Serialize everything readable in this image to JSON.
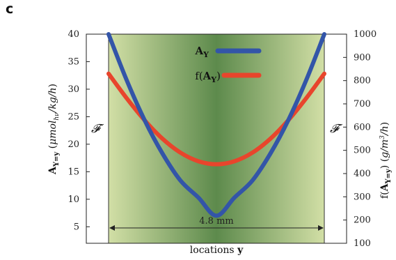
{
  "panel_label": "c",
  "chart_data": {
    "type": "line",
    "xlabel": "locations y",
    "ylabel_left": "A Y=y (μmol_hv/kg/h)",
    "ylabel_right": "f(A Y=y) (g/m³/h)",
    "ylim_left": [
      2,
      40
    ],
    "ylim_right": [
      100,
      1000
    ],
    "yticks_left": [
      5,
      10,
      15,
      20,
      25,
      30,
      35,
      40
    ],
    "yticks_right": [
      100,
      200,
      300,
      400,
      500,
      600,
      700,
      800,
      900,
      1000
    ],
    "x": [
      -2.4,
      -2.0,
      -1.6,
      -1.2,
      -0.8,
      -0.4,
      0.0,
      0.4,
      0.8,
      1.2,
      1.6,
      2.0,
      2.4
    ],
    "series": [
      {
        "name": "A Y",
        "axis": "left",
        "color": "#3355a8",
        "values": [
          40.0,
          31.7,
          24.4,
          18.3,
          13.4,
          10.3,
          7.0,
          10.3,
          13.4,
          18.3,
          24.4,
          31.7,
          40.0
        ]
      },
      {
        "name": "f(A Y)",
        "axis": "right",
        "color": "#e8452c",
        "values": [
          830,
          725,
          630,
          550,
          490,
          453,
          440,
          453,
          490,
          550,
          630,
          725,
          830
        ]
      }
    ],
    "annotations": {
      "boundary_left": "𝓕",
      "boundary_right": "𝓕",
      "span_label": "4.8 mm"
    },
    "legend_position": "top-center",
    "background_gradient": {
      "edge_color": "#d2dfa6",
      "center_color": "#5d8a4c"
    }
  }
}
